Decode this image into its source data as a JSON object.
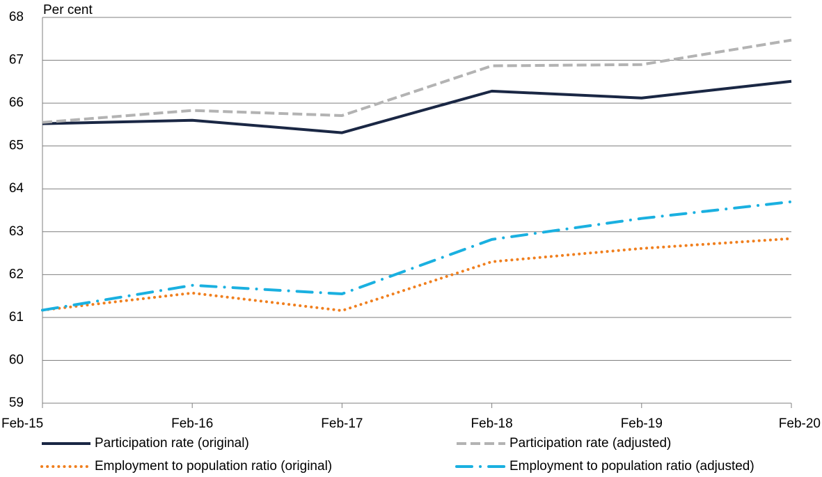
{
  "chart_data": {
    "type": "line",
    "y_label": "Per cent",
    "categories": [
      "Feb-15",
      "Feb-16",
      "Feb-17",
      "Feb-18",
      "Feb-19",
      "Feb-20"
    ],
    "series": [
      {
        "name": "Participation rate (original)",
        "color": "#1a2744",
        "style": "solid",
        "values": [
          65.52,
          65.6,
          65.31,
          66.28,
          66.12,
          66.51
        ]
      },
      {
        "name": "Participation rate (adjusted)",
        "color": "#b3b3b3",
        "style": "dashed",
        "values": [
          65.55,
          65.83,
          65.71,
          66.87,
          66.9,
          67.47
        ]
      },
      {
        "name": "Employment to population ratio (original)",
        "color": "#f07f1e",
        "style": "dotted",
        "values": [
          61.17,
          61.57,
          61.16,
          62.3,
          62.61,
          62.84
        ]
      },
      {
        "name": "Employment to population ratio (adjusted)",
        "color": "#1ab0e0",
        "style": "dashdot",
        "values": [
          61.17,
          61.75,
          61.55,
          62.82,
          63.31,
          63.7
        ]
      }
    ],
    "ylim": [
      59,
      68
    ],
    "yticks": [
      59,
      60,
      61,
      62,
      63,
      64,
      65,
      66,
      67,
      68
    ],
    "grid": true
  }
}
